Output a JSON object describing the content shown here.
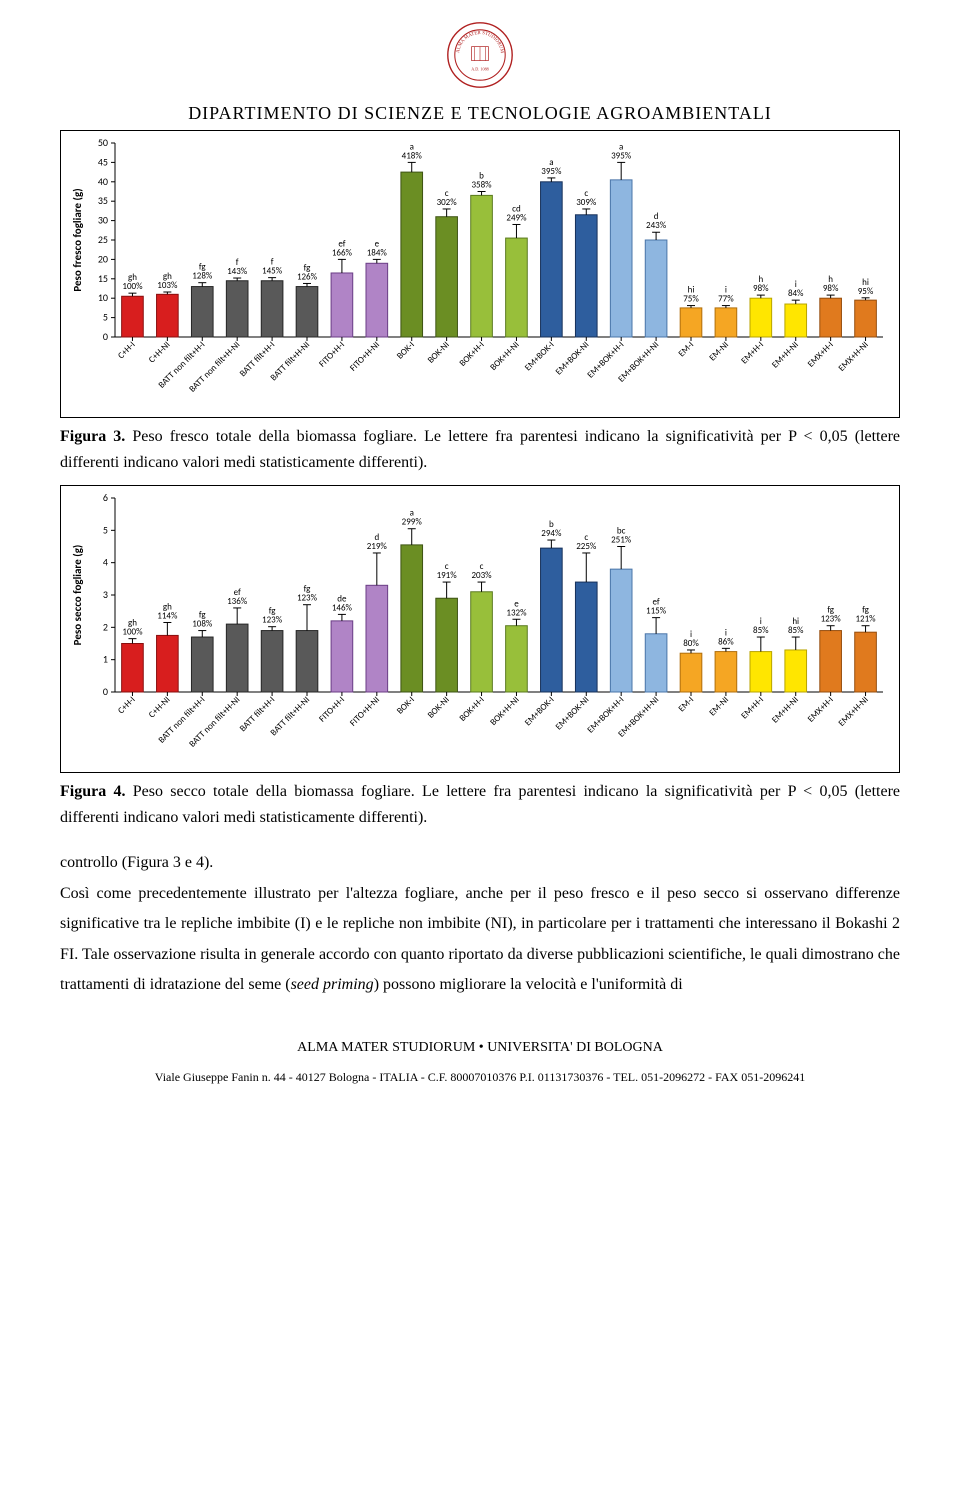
{
  "header": {
    "dept_title": "DIPARTIMENTO  DI  SCIENZE  E  TECNOLOGIE  AGROAMBIENTALI"
  },
  "categories": [
    "C+H-I",
    "C+H-NI",
    "BATT non filt+H-I",
    "BATT non filt+H-NI",
    "BATT filt+H-I",
    "BATT filt+H-NI",
    "FITO+H-I",
    "FITO+H-NI",
    "BOK-I",
    "BOK-NI",
    "BOK+H-I",
    "BOK+H-NI",
    "EM+BOK-I",
    "EM+BOK-NI",
    "EM+BOK+H-I",
    "EM+BOK+H-NI",
    "EM-I",
    "EM-NI",
    "EM+H-I",
    "EM+H-NI",
    "EMX+H-I",
    "EMX+H-NI"
  ],
  "chart1": {
    "ylabel": "Peso fresco fogliare (g)",
    "ylim": [
      0,
      50
    ],
    "ytick_step": 5,
    "background": "#ffffff",
    "bars": [
      {
        "v": 10.5,
        "err": 0.8,
        "sig": "gh",
        "pct": "100%",
        "fill": "#d81e1e",
        "stroke": "#8a0f0f"
      },
      {
        "v": 11.0,
        "err": 0.6,
        "sig": "gh",
        "pct": "103%",
        "fill": "#d81e1e",
        "stroke": "#8a0f0f"
      },
      {
        "v": 13.0,
        "err": 1.0,
        "sig": "fg",
        "pct": "128%",
        "fill": "#595959",
        "stroke": "#262626"
      },
      {
        "v": 14.5,
        "err": 0.7,
        "sig": "f",
        "pct": "143%",
        "fill": "#595959",
        "stroke": "#262626"
      },
      {
        "v": 14.5,
        "err": 0.8,
        "sig": "f",
        "pct": "145%",
        "fill": "#595959",
        "stroke": "#262626"
      },
      {
        "v": 13.0,
        "err": 0.8,
        "sig": "fg",
        "pct": "126%",
        "fill": "#595959",
        "stroke": "#262626"
      },
      {
        "v": 16.5,
        "err": 3.5,
        "sig": "ef",
        "pct": "166%",
        "fill": "#b084c6",
        "stroke": "#6b3e86"
      },
      {
        "v": 19.0,
        "err": 1.0,
        "sig": "e",
        "pct": "184%",
        "fill": "#b084c6",
        "stroke": "#6b3e86"
      },
      {
        "v": 42.5,
        "err": 2.5,
        "sig": "a",
        "pct": "418%",
        "fill": "#6b8e23",
        "stroke": "#3e5414"
      },
      {
        "v": 31.0,
        "err": 2.0,
        "sig": "c",
        "pct": "302%",
        "fill": "#6b8e23",
        "stroke": "#3e5414"
      },
      {
        "v": 36.5,
        "err": 1.0,
        "sig": "b",
        "pct": "358%",
        "fill": "#98bf3a",
        "stroke": "#5a7a1e"
      },
      {
        "v": 25.5,
        "err": 3.5,
        "sig": "cd",
        "pct": "249%",
        "fill": "#98bf3a",
        "stroke": "#5a7a1e"
      },
      {
        "v": 40.0,
        "err": 1.0,
        "sig": "a",
        "pct": "395%",
        "fill": "#2e5e9e",
        "stroke": "#17315a"
      },
      {
        "v": 31.5,
        "err": 1.5,
        "sig": "c",
        "pct": "309%",
        "fill": "#2e5e9e",
        "stroke": "#17315a"
      },
      {
        "v": 40.5,
        "err": 4.5,
        "sig": "a",
        "pct": "395%",
        "fill": "#8eb6e0",
        "stroke": "#4a75a8"
      },
      {
        "v": 25.0,
        "err": 2.0,
        "sig": "d",
        "pct": "243%",
        "fill": "#8eb6e0",
        "stroke": "#4a75a8"
      },
      {
        "v": 7.5,
        "err": 0.6,
        "sig": "hi",
        "pct": "75%",
        "fill": "#f5a623",
        "stroke": "#b06f0d"
      },
      {
        "v": 7.5,
        "err": 0.6,
        "sig": "i",
        "pct": "77%",
        "fill": "#f5a623",
        "stroke": "#b06f0d"
      },
      {
        "v": 10.0,
        "err": 0.8,
        "sig": "h",
        "pct": "98%",
        "fill": "#ffe600",
        "stroke": "#b8a400"
      },
      {
        "v": 8.5,
        "err": 1.0,
        "sig": "i",
        "pct": "84%",
        "fill": "#ffe600",
        "stroke": "#b8a400"
      },
      {
        "v": 10.0,
        "err": 0.8,
        "sig": "h",
        "pct": "98%",
        "fill": "#e07a1e",
        "stroke": "#964d0c"
      },
      {
        "v": 9.5,
        "err": 0.6,
        "sig": "hi",
        "pct": "95%",
        "fill": "#e07a1e",
        "stroke": "#964d0c"
      }
    ]
  },
  "caption1": {
    "bold": "Figura 3.",
    "text": " Peso fresco totale della biomassa fogliare. Le lettere fra parentesi indicano la significatività per P < 0,05 (lettere differenti indicano valori medi statisticamente differenti)."
  },
  "chart2": {
    "ylabel": "Peso secco fogliare (g)",
    "ylim": [
      0,
      6
    ],
    "ytick_step": 1,
    "background": "#ffffff",
    "bars": [
      {
        "v": 1.5,
        "err": 0.15,
        "sig": "gh",
        "pct": "100%",
        "fill": "#d81e1e",
        "stroke": "#8a0f0f"
      },
      {
        "v": 1.75,
        "err": 0.4,
        "sig": "gh",
        "pct": "114%",
        "fill": "#d81e1e",
        "stroke": "#8a0f0f"
      },
      {
        "v": 1.7,
        "err": 0.2,
        "sig": "fg",
        "pct": "108%",
        "fill": "#595959",
        "stroke": "#262626"
      },
      {
        "v": 2.1,
        "err": 0.5,
        "sig": "ef",
        "pct": "136%",
        "fill": "#595959",
        "stroke": "#262626"
      },
      {
        "v": 1.9,
        "err": 0.12,
        "sig": "fg",
        "pct": "123%",
        "fill": "#595959",
        "stroke": "#262626"
      },
      {
        "v": 1.9,
        "err": 0.8,
        "sig": "fg",
        "pct": "123%",
        "fill": "#595959",
        "stroke": "#262626"
      },
      {
        "v": 2.2,
        "err": 0.2,
        "sig": "de",
        "pct": "146%",
        "fill": "#b084c6",
        "stroke": "#6b3e86"
      },
      {
        "v": 3.3,
        "err": 1.0,
        "sig": "d",
        "pct": "219%",
        "fill": "#b084c6",
        "stroke": "#6b3e86"
      },
      {
        "v": 4.55,
        "err": 0.5,
        "sig": "a",
        "pct": "299%",
        "fill": "#6b8e23",
        "stroke": "#3e5414"
      },
      {
        "v": 2.9,
        "err": 0.5,
        "sig": "c",
        "pct": "191%",
        "fill": "#6b8e23",
        "stroke": "#3e5414"
      },
      {
        "v": 3.1,
        "err": 0.3,
        "sig": "c",
        "pct": "203%",
        "fill": "#98bf3a",
        "stroke": "#5a7a1e"
      },
      {
        "v": 2.05,
        "err": 0.2,
        "sig": "e",
        "pct": "132%",
        "fill": "#98bf3a",
        "stroke": "#5a7a1e"
      },
      {
        "v": 4.45,
        "err": 0.25,
        "sig": "b",
        "pct": "294%",
        "fill": "#2e5e9e",
        "stroke": "#17315a"
      },
      {
        "v": 3.4,
        "err": 0.9,
        "sig": "c",
        "pct": "225%",
        "fill": "#2e5e9e",
        "stroke": "#17315a"
      },
      {
        "v": 3.8,
        "err": 0.7,
        "sig": "bc",
        "pct": "251%",
        "fill": "#8eb6e0",
        "stroke": "#4a75a8"
      },
      {
        "v": 1.8,
        "err": 0.5,
        "sig": "ef",
        "pct": "115%",
        "fill": "#8eb6e0",
        "stroke": "#4a75a8"
      },
      {
        "v": 1.2,
        "err": 0.1,
        "sig": "i",
        "pct": "80%",
        "fill": "#f5a623",
        "stroke": "#b06f0d"
      },
      {
        "v": 1.25,
        "err": 0.1,
        "sig": "i",
        "pct": "86%",
        "fill": "#f5a623",
        "stroke": "#b06f0d"
      },
      {
        "v": 1.25,
        "err": 0.45,
        "sig": "i",
        "pct": "85%",
        "fill": "#ffe600",
        "stroke": "#b8a400"
      },
      {
        "v": 1.3,
        "err": 0.4,
        "sig": "hi",
        "pct": "85%",
        "fill": "#ffe600",
        "stroke": "#b8a400"
      },
      {
        "v": 1.9,
        "err": 0.15,
        "sig": "fg",
        "pct": "123%",
        "fill": "#e07a1e",
        "stroke": "#964d0c"
      },
      {
        "v": 1.85,
        "err": 0.2,
        "sig": "fg",
        "pct": "121%",
        "fill": "#e07a1e",
        "stroke": "#964d0c"
      }
    ]
  },
  "caption2": {
    "bold": "Figura 4.",
    "text": " Peso secco totale della biomassa fogliare. Le lettere fra parentesi indicano la significatività per P < 0,05 (lettere differenti indicano valori medi statisticamente differenti)."
  },
  "body": {
    "para": "controllo (Figura 3 e 4).\nCosì come precedentemente illustrato per l'altezza fogliare, anche per il peso fresco e il peso secco si osservano differenze significative tra le repliche imbibite (I) e le repliche non imbibite (NI), in particolare per i trattamenti che interessano il Bokashi 2 FI. Tale osservazione risulta in generale accordo con quanto riportato da diverse pubblicazioni scientifiche, le quali dimostrano che trattamenti di idratazione del seme (seed priming) possono migliorare la velocità e l'uniformità di"
  },
  "footer": {
    "line1": "ALMA MATER STUDIORUM • UNIVERSITA' DI BOLOGNA",
    "line2": "Viale Giuseppe Fanin n. 44 - 40127 Bologna - ITALIA - C.F. 80007010376 P.I. 01131730376 - TEL. 051-2096272 - FAX 051-2096241"
  }
}
